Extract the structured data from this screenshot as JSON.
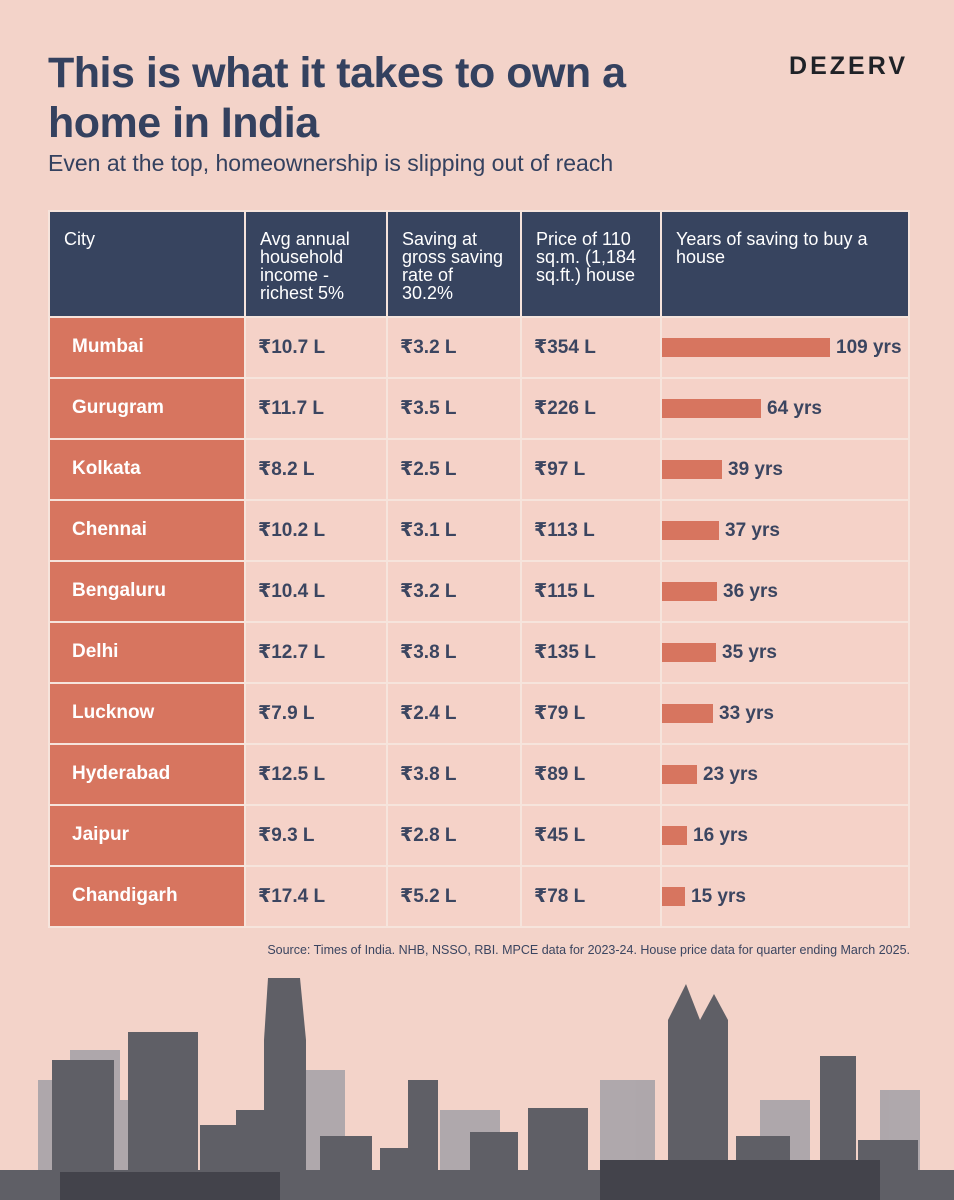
{
  "header": {
    "title": "This is what it takes to own a home in India",
    "brand": "DEZERV",
    "subtitle": "Even at the top, homeownership is slipping out of reach"
  },
  "source": "Source: Times of India. NHB, NSSO, RBI. MPCE data for 2023-24. House price data for quarter ending March 2025.",
  "colors": {
    "background": "#f3d3c9",
    "header_fill": "#37445f",
    "accent": "#d7755f",
    "text": "#34415f"
  },
  "chart_data": {
    "type": "table",
    "title": "This is what it takes to own a home in India",
    "columns": [
      "City",
      "Avg annual household income - richest 5%",
      "Saving at gross saving rate of 30.2%",
      "Price of 110 sq.m. (1,184 sq.ft.) house",
      "Years of saving to buy a house"
    ],
    "rows": [
      {
        "city": "Mumbai",
        "income": "₹10.7 L",
        "saving": "₹3.2 L",
        "price": "₹354 L",
        "years": 109,
        "years_label": "109 yrs"
      },
      {
        "city": "Gurugram",
        "income": "₹11.7 L",
        "saving": "₹3.5 L",
        "price": "₹226 L",
        "years": 64,
        "years_label": "64 yrs"
      },
      {
        "city": "Kolkata",
        "income": "₹8.2 L",
        "saving": "₹2.5 L",
        "price": "₹97 L",
        "years": 39,
        "years_label": "39 yrs"
      },
      {
        "city": "Chennai",
        "income": "₹10.2 L",
        "saving": "₹3.1 L",
        "price": "₹113 L",
        "years": 37,
        "years_label": "37 yrs"
      },
      {
        "city": "Bengaluru",
        "income": "₹10.4 L",
        "saving": "₹3.2 L",
        "price": "₹115 L",
        "years": 36,
        "years_label": "36 yrs"
      },
      {
        "city": "Delhi",
        "income": "₹12.7 L",
        "saving": "₹3.8 L",
        "price": "₹135 L",
        "years": 35,
        "years_label": "35 yrs"
      },
      {
        "city": "Lucknow",
        "income": "₹7.9 L",
        "saving": "₹2.4 L",
        "price": "₹79 L",
        "years": 33,
        "years_label": "33 yrs"
      },
      {
        "city": "Hyderabad",
        "income": "₹12.5 L",
        "saving": "₹3.8 L",
        "price": "₹89 L",
        "years": 23,
        "years_label": "23 yrs"
      },
      {
        "city": "Jaipur",
        "income": "₹9.3 L",
        "saving": "₹2.8 L",
        "price": "₹45 L",
        "years": 16,
        "years_label": "16 yrs"
      },
      {
        "city": "Chandigarh",
        "income": "₹17.4 L",
        "saving": "₹5.2 L",
        "price": "₹78 L",
        "years": 15,
        "years_label": "15 yrs"
      }
    ],
    "bar_max": 109
  }
}
